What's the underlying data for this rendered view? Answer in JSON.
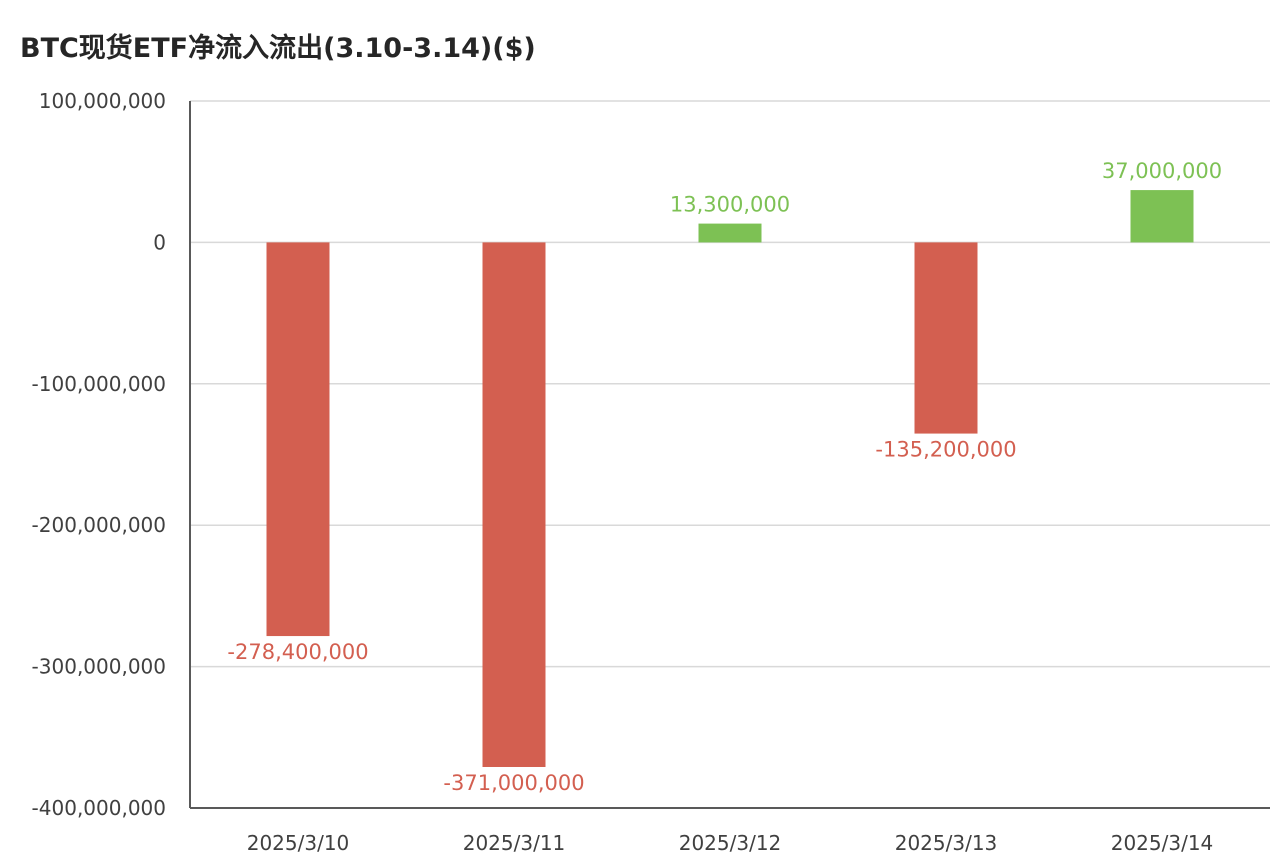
{
  "colors": {
    "negative": "#D35F50",
    "positive": "#7DC154",
    "grid": "#D9D9D9",
    "axis": "#595959",
    "text": "#404040"
  },
  "chart_data": {
    "type": "bar",
    "title": "BTC现货ETF净流入流出(3.10-3.14)($)",
    "xlabel": "",
    "ylabel": "",
    "categories": [
      "2025/3/10",
      "2025/3/11",
      "2025/3/12",
      "2025/3/13",
      "2025/3/14"
    ],
    "values": [
      -278400000,
      -371000000,
      13300000,
      -135200000,
      37000000
    ],
    "value_labels": [
      "-278,400,000",
      "-371,000,000",
      "13,300,000",
      "-135,200,000",
      "37,000,000"
    ],
    "ylim": [
      -400000000,
      100000000
    ],
    "y_ticks": [
      100000000,
      0,
      -100000000,
      -200000000,
      -300000000,
      -400000000
    ],
    "y_tick_labels": [
      "100,000,000",
      "0",
      "-100,000,000",
      "-200,000,000",
      "-300,000,000",
      "-400,000,000"
    ],
    "grid": true,
    "legend": "none"
  }
}
